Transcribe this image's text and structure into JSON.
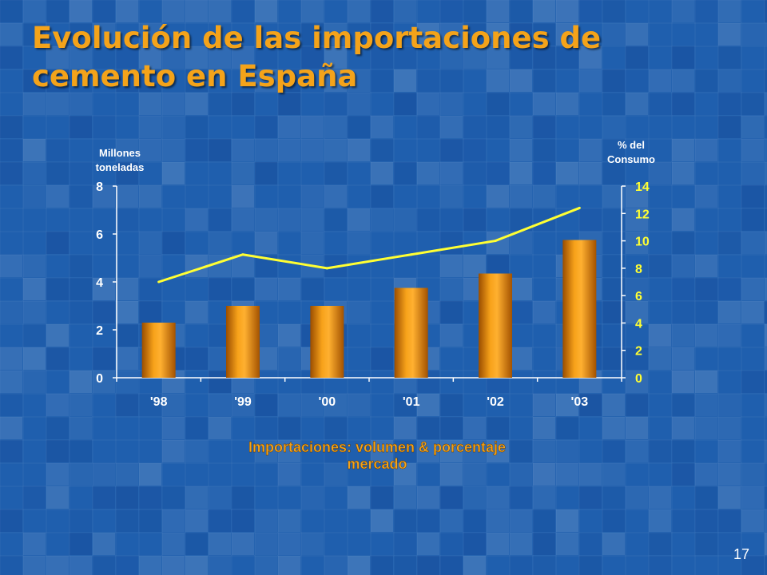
{
  "title_line1": "Evolución de las importaciones de",
  "title_line2": "cemento en España",
  "page_number": "17",
  "colors": {
    "title": "#f4a31a",
    "bar": "#f29400",
    "line": "#ffff33",
    "left_axis_text": "#ffffff",
    "right_axis_text": "#ffff33",
    "caption": "#f4a31a"
  },
  "chart_data": {
    "type": "bar",
    "categories": [
      "'98",
      "'99",
      "'00",
      "'01",
      "'02",
      "'03"
    ],
    "series": [
      {
        "type": "bar",
        "axis": "left",
        "values": [
          2.3,
          3.0,
          3.0,
          3.75,
          4.35,
          5.75
        ]
      },
      {
        "type": "line",
        "axis": "right",
        "values": [
          7.0,
          9.0,
          8.0,
          9.0,
          10.0,
          12.4
        ]
      }
    ],
    "ylabel": "Millones toneladas",
    "ylabel_lines": [
      "Millones",
      "toneladas"
    ],
    "y2label": "% del Consumo",
    "y2label_lines": [
      "% del",
      "Consumo"
    ],
    "ylim": [
      0,
      8
    ],
    "y2lim": [
      0,
      14
    ],
    "yticks": [
      "0",
      "2",
      "4",
      "6",
      "8"
    ],
    "y2ticks": [
      "0",
      "2",
      "4",
      "6",
      "8",
      "10",
      "12",
      "14"
    ],
    "caption": "Importaciones: volumen & porcentaje mercado",
    "caption_lines": [
      "Importaciones: volumen & porcentaje",
      "mercado"
    ],
    "grid": false,
    "legend": "none"
  }
}
